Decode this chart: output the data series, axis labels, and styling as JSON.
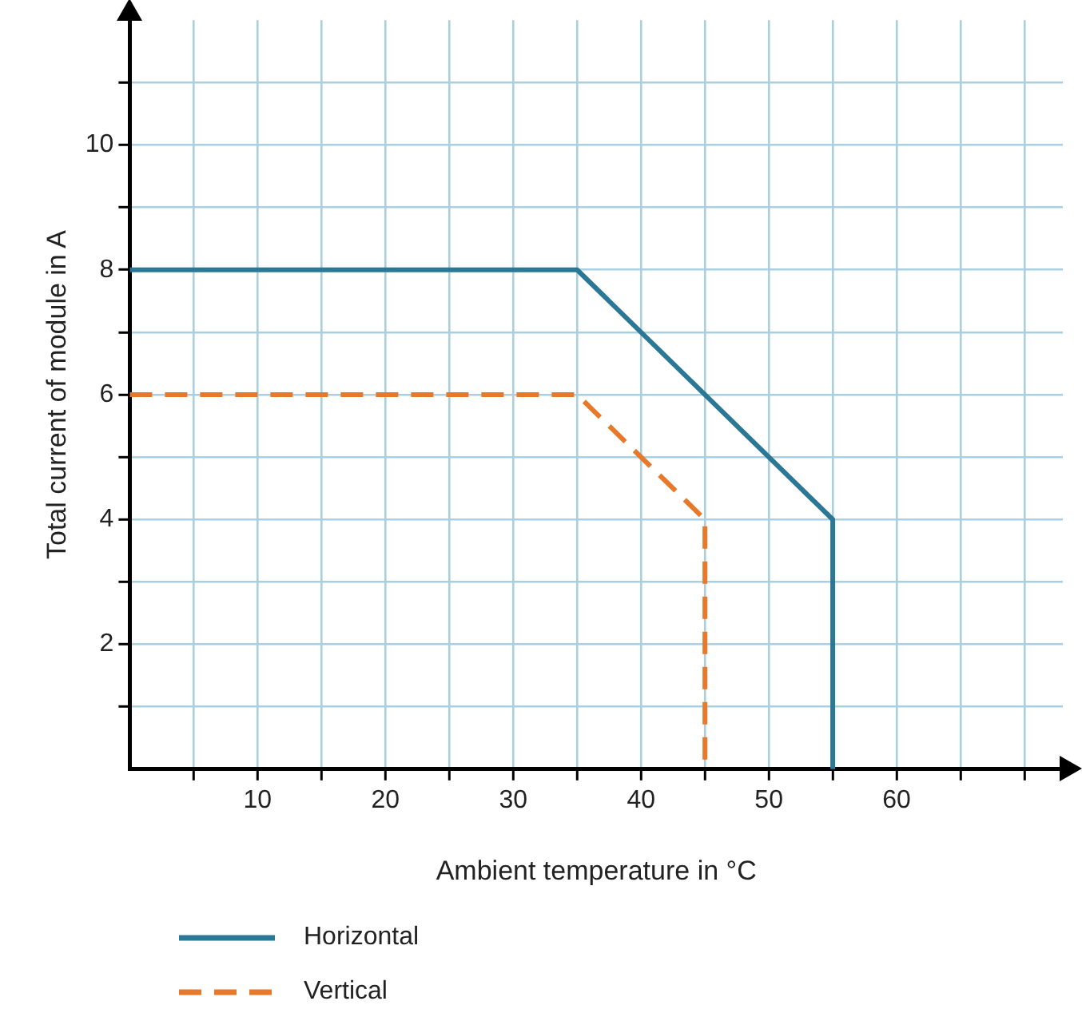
{
  "chart_data": {
    "type": "line",
    "xlabel": "Ambient temperature in °C",
    "ylabel": "Total current of module in A",
    "xlim": [
      0,
      73
    ],
    "ylim": [
      0,
      12
    ],
    "xticks": [
      {
        "value": 5,
        "label": null
      },
      10,
      {
        "value": 15,
        "label": null
      },
      20,
      {
        "value": 25,
        "label": null
      },
      30,
      {
        "value": 35,
        "label": null
      },
      40,
      {
        "value": 45,
        "label": null
      },
      50,
      {
        "value": 55,
        "label": null
      },
      60,
      {
        "value": 65,
        "label": null
      },
      {
        "value": 70,
        "label": null
      }
    ],
    "yticks": [
      {
        "value": 1,
        "label": null
      },
      2,
      {
        "value": 3,
        "label": null
      },
      4,
      {
        "value": 5,
        "label": null
      },
      6,
      {
        "value": 7,
        "label": null
      },
      8,
      {
        "value": 9,
        "label": null
      },
      10,
      {
        "value": 11,
        "label": null
      }
    ],
    "grid": true,
    "legend": "bottom",
    "marker": "none",
    "series": [
      {
        "name": "Horizontal",
        "color": "#2b7896",
        "line_style": "solid",
        "x": [
          0,
          35,
          55,
          55
        ],
        "values": [
          8,
          8,
          4,
          0
        ]
      },
      {
        "name": "Vertical",
        "color": "#e8782a",
        "line_style": "dashed",
        "x": [
          0,
          35,
          45,
          45
        ],
        "values": [
          6,
          6,
          4,
          0
        ]
      }
    ]
  }
}
